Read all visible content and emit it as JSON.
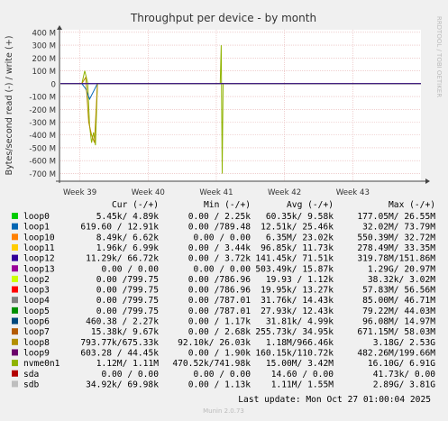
{
  "chart_data": {
    "type": "line",
    "title": "Throughput per device - by month",
    "ylabel": "Bytes/second read (-) / write (+)",
    "side_label": "RRDTOOL / TOBI OETIKER",
    "ylim": [
      -760,
      420
    ],
    "y_unit": "M",
    "y_ticks": [
      "400 M",
      "300 M",
      "200 M",
      "100 M",
      "0",
      "-100 M",
      "-200 M",
      "-300 M",
      "-400 M",
      "-500 M",
      "-600 M",
      "-700 M"
    ],
    "y_tick_values": [
      400,
      300,
      200,
      100,
      0,
      -100,
      -200,
      -300,
      -400,
      -500,
      -600,
      -700
    ],
    "x_ticks": [
      "Week 39",
      "Week 40",
      "Week 41",
      "Week 42",
      "Week 43"
    ],
    "x_range_days": [
      0,
      37
    ],
    "x_tick_days": [
      2,
      9,
      16,
      23,
      30
    ],
    "series": [
      {
        "name": "nvme0n1",
        "color": "#8fb300",
        "points": [
          [
            0,
            0
          ],
          [
            2.2,
            0
          ],
          [
            2.5,
            100
          ],
          [
            2.8,
            5
          ],
          [
            3,
            -330
          ],
          [
            3.2,
            -460
          ],
          [
            3.4,
            -380
          ],
          [
            3.6,
            -480
          ],
          [
            3.8,
            0
          ],
          [
            4.5,
            0
          ],
          [
            16.4,
            0
          ],
          [
            16.5,
            300
          ],
          [
            16.6,
            -700
          ],
          [
            16.7,
            0
          ],
          [
            37,
            0
          ]
        ]
      },
      {
        "name": "loop1",
        "color": "#0066b3",
        "points": [
          [
            0,
            0
          ],
          [
            2.2,
            0
          ],
          [
            2.6,
            -40
          ],
          [
            3,
            -120
          ],
          [
            3.4,
            -60
          ],
          [
            3.8,
            0
          ],
          [
            37,
            0
          ]
        ]
      },
      {
        "name": "loop7",
        "color": "#b38f00",
        "points": [
          [
            0,
            0
          ],
          [
            2.2,
            0
          ],
          [
            2.6,
            50
          ],
          [
            2.9,
            -300
          ],
          [
            3.2,
            -400
          ],
          [
            3.5,
            -460
          ],
          [
            3.8,
            0
          ],
          [
            37,
            0
          ]
        ]
      },
      {
        "name": "sda",
        "color": "#330099",
        "points": [
          [
            0,
            0
          ],
          [
            37,
            0
          ]
        ]
      }
    ],
    "legend": {
      "headers": [
        "Cur (-/+)",
        "Min (-/+)",
        "Avg (-/+)",
        "Max (-/+)"
      ],
      "rows": [
        {
          "name": "loop0",
          "color": "#00cc00",
          "cur": "5.45k/  4.89k",
          "min": "0.00 /  2.25k",
          "avg": "60.35k/  9.58k",
          "max": "177.05M/ 26.55M"
        },
        {
          "name": "loop1",
          "color": "#0066b3",
          "cur": "619.60 / 12.91k",
          "min": "0.00 /789.48",
          "avg": "12.51k/ 25.46k",
          "max": "32.02M/ 73.79M"
        },
        {
          "name": "loop10",
          "color": "#ff8000",
          "cur": "8.49k/  6.62k",
          "min": "0.00 /  0.00",
          "avg": "6.35M/ 23.02k",
          "max": "550.39M/ 32.72M"
        },
        {
          "name": "loop11",
          "color": "#ffcc00",
          "cur": "1.96k/  6.99k",
          "min": "0.00 /  3.44k",
          "avg": "96.85k/ 11.73k",
          "max": "278.49M/ 33.35M"
        },
        {
          "name": "loop12",
          "color": "#330099",
          "cur": "11.29k/ 66.72k",
          "min": "0.00 /  3.72k",
          "avg": "141.45k/ 71.51k",
          "max": "319.78M/151.86M"
        },
        {
          "name": "loop13",
          "color": "#990099",
          "cur": "0.00 /  0.00",
          "min": "0.00 /  0.00",
          "avg": "503.49k/ 15.87k",
          "max": "1.29G/ 20.97M"
        },
        {
          "name": "loop2",
          "color": "#ccff00",
          "cur": "0.00 /799.75",
          "min": "0.00 /786.96",
          "avg": "19.93 /  1.12k",
          "max": "38.32k/  3.02M"
        },
        {
          "name": "loop3",
          "color": "#ff0000",
          "cur": "0.00 /799.75",
          "min": "0.00 /786.96",
          "avg": "19.95k/ 13.27k",
          "max": "57.83M/ 56.56M"
        },
        {
          "name": "loop4",
          "color": "#808080",
          "cur": "0.00 /799.75",
          "min": "0.00 /787.01",
          "avg": "31.76k/ 14.43k",
          "max": "85.00M/ 46.71M"
        },
        {
          "name": "loop5",
          "color": "#008f00",
          "cur": "0.00 /799.75",
          "min": "0.00 /787.01",
          "avg": "27.93k/ 12.43k",
          "max": "79.22M/ 44.03M"
        },
        {
          "name": "loop6",
          "color": "#00487d",
          "cur": "460.38 /  2.27k",
          "min": "0.00 /  1.17k",
          "avg": "31.81k/  4.99k",
          "max": "96.08M/ 14.97M"
        },
        {
          "name": "loop7",
          "color": "#b35a00",
          "cur": "15.38k/  9.67k",
          "min": "0.00 /  2.68k",
          "avg": "255.73k/ 34.95k",
          "max": "671.15M/ 58.03M"
        },
        {
          "name": "loop8",
          "color": "#b38f00",
          "cur": "793.77k/675.33k",
          "min": "92.10k/ 26.03k",
          "avg": "1.18M/966.46k",
          "max": "3.18G/  2.53G"
        },
        {
          "name": "loop9",
          "color": "#6b006b",
          "cur": "603.28 / 44.45k",
          "min": "0.00 /  1.90k",
          "avg": "160.15k/110.72k",
          "max": "482.26M/199.66M"
        },
        {
          "name": "nvme0n1",
          "color": "#8fb300",
          "cur": "1.12M/  1.11M",
          "min": "470.52k/741.98k",
          "avg": "15.00M/  3.42M",
          "max": "16.10G/  6.91G"
        },
        {
          "name": "sda",
          "color": "#b30000",
          "cur": "0.00 /  0.00",
          "min": "0.00 /  0.00",
          "avg": "14.60 /  0.00",
          "max": "41.73k/  0.00"
        },
        {
          "name": "sdb",
          "color": "#bebebe",
          "cur": "34.92k/ 69.98k",
          "min": "0.00 /  1.13k",
          "avg": "1.11M/  1.55M",
          "max": "2.89G/  3.81G"
        }
      ]
    }
  },
  "footer": {
    "last_update": "Last update: Mon Oct 27 01:00:04 2025",
    "generator": "Munin 2.0.73"
  },
  "colors": {
    "background": "#f0f0f0",
    "plot_bg": "#ffffff",
    "grid": "#e6b3b3",
    "zero_line": "#000000"
  }
}
